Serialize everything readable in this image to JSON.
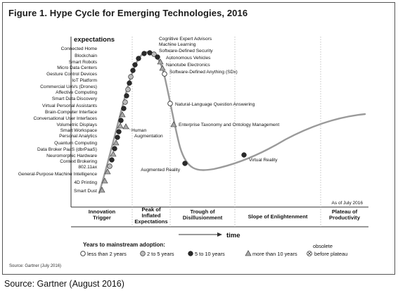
{
  "figure": {
    "title": "Figure 1. Hype Cycle for Emerging Technologies, 2016",
    "y_axis_label": "expectations",
    "x_axis_label": "time",
    "as_of": "As of July 2016",
    "phases": [
      {
        "label_lines": [
          "Innovation",
          "Trigger"
        ]
      },
      {
        "label_lines": [
          "Peak of",
          "Inflated",
          "Expectations"
        ]
      },
      {
        "label_lines": [
          "Trough of",
          "Disillusionment"
        ]
      },
      {
        "label_lines": [
          "Slope of Enlightenment"
        ]
      },
      {
        "label_lines": [
          "Plateau of",
          "Productivity"
        ]
      }
    ],
    "legend": {
      "title": "Years to mainstream adoption:",
      "items": [
        {
          "symbol": "open-circle",
          "label": "less than 2 years"
        },
        {
          "symbol": "light-circle",
          "label": "2 to 5 years"
        },
        {
          "symbol": "dark-circle",
          "label": "5 to 10 years"
        },
        {
          "symbol": "triangle",
          "label": "more than 10 years"
        },
        {
          "symbol": "x-circle",
          "label_lines": [
            "obsolete",
            "before plateau"
          ]
        }
      ]
    },
    "source_small": "Source: Gartner (July 2016)",
    "technologies": [
      {
        "name": "Smart Dust",
        "symbol": "triangle",
        "side": "left"
      },
      {
        "name": "4D Printing",
        "symbol": "triangle",
        "side": "left"
      },
      {
        "name": "General-Purpose Machine Intelligence",
        "symbol": "triangle",
        "side": "left"
      },
      {
        "name": "802.11ax",
        "symbol": "light-circle",
        "side": "left"
      },
      {
        "name": "Context Brokering",
        "symbol": "dark-circle",
        "side": "left"
      },
      {
        "name": "Neuromorphic Hardware",
        "symbol": "triangle",
        "side": "left"
      },
      {
        "name": "Data Broker PaaS (dbrPaaS)",
        "symbol": "dark-circle",
        "side": "left"
      },
      {
        "name": "Quantum Computing",
        "symbol": "triangle",
        "side": "left"
      },
      {
        "name": "Personal Analytics",
        "symbol": "dark-circle",
        "side": "left"
      },
      {
        "name": "Smart Workspace",
        "symbol": "dark-circle",
        "side": "left"
      },
      {
        "name": "Volumetric Displays",
        "symbol": "triangle",
        "side": "left"
      },
      {
        "name": "Conversational User Interfaces",
        "symbol": "dark-circle",
        "side": "left"
      },
      {
        "name": "Brain-Computer Interface",
        "symbol": "triangle",
        "side": "left"
      },
      {
        "name": "Virtual Personal Assistants",
        "symbol": "dark-circle",
        "side": "left"
      },
      {
        "name": "Smart Data Discovery",
        "symbol": "light-circle",
        "side": "left"
      },
      {
        "name": "Affective Computing",
        "symbol": "dark-circle",
        "side": "left"
      },
      {
        "name": "Commercial UAVs (Drones)",
        "symbol": "light-circle",
        "side": "left"
      },
      {
        "name": "IoT Platform",
        "symbol": "dark-circle",
        "side": "left"
      },
      {
        "name": "Gesture Control Devices",
        "symbol": "light-circle",
        "side": "left"
      },
      {
        "name": "Micro Data Centers",
        "symbol": "dark-circle",
        "side": "left"
      },
      {
        "name": "Smart Robots",
        "symbol": "dark-circle",
        "side": "left"
      },
      {
        "name": "Blockchain",
        "symbol": "dark-circle",
        "side": "left"
      },
      {
        "name": "Connected Home",
        "symbol": "dark-circle",
        "side": "left"
      },
      {
        "name": "Human Augmentation",
        "symbol": "triangle",
        "side": "right"
      },
      {
        "name": "Cognitive Expert Advisors",
        "symbol": "dark-circle",
        "side": "right"
      },
      {
        "name": "Machine Learning",
        "symbol": "light-circle",
        "side": "right"
      },
      {
        "name": "Software-Defined Security",
        "symbol": "dark-circle",
        "side": "right"
      },
      {
        "name": "Autonomous Vehicles",
        "symbol": "triangle",
        "side": "right"
      },
      {
        "name": "Nanotube Electronics",
        "symbol": "triangle",
        "side": "right"
      },
      {
        "name": "Software-Defined Anything (SDx)",
        "symbol": "open-circle",
        "side": "right"
      },
      {
        "name": "Natural-Language Question Answering",
        "symbol": "open-circle",
        "side": "right"
      },
      {
        "name": "Enterprise Taxonomy and Ontology Management",
        "symbol": "triangle",
        "side": "right"
      },
      {
        "name": "Augmented Reality",
        "symbol": "dark-circle",
        "side": "left"
      },
      {
        "name": "Virtual Reality",
        "symbol": "dark-circle",
        "side": "right"
      }
    ]
  },
  "caption": "Source: Gartner (August 2016)",
  "colors": {
    "curve": "#9a9a9a",
    "marker_dark": "#2a2a2a",
    "marker_light": "#bcbcbc",
    "marker_stroke": "#333333",
    "triangle_fill": "#a8a8a8"
  }
}
